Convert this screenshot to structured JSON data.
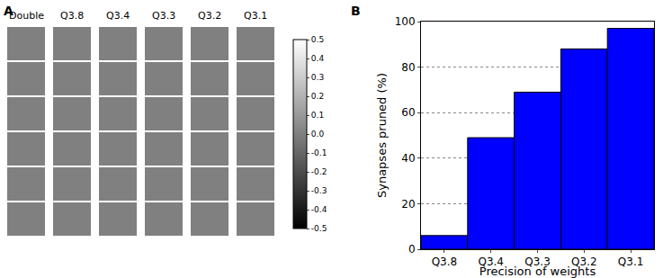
{
  "panel_a": {
    "label": "A",
    "columns": [
      "Double",
      "Q3.8",
      "Q3.4",
      "Q3.3",
      "Q3.2",
      "Q3.1"
    ],
    "colorbar": {
      "range": [
        -0.5,
        0.5
      ],
      "ticks": [
        0.5,
        0.4,
        0.3,
        0.2,
        0.1,
        {
          "value": 0,
          "label": "0.0"
        },
        -0.1,
        -0.2,
        -0.3,
        -0.4,
        -0.5
      ]
    }
  },
  "chart_data": {
    "label": "B",
    "type": "bar",
    "categories": [
      "Q3.8",
      "Q3.4",
      "Q3.3",
      "Q3.2",
      "Q3.1"
    ],
    "values": [
      6,
      49,
      69,
      88,
      97
    ],
    "color": "#0000ff",
    "x_label": "Precision of weights",
    "y_label": "Synapses pruned (%)",
    "ylim": [
      0,
      100
    ],
    "yticks": [
      0,
      20,
      40,
      60,
      80,
      100
    ],
    "grid": true
  }
}
